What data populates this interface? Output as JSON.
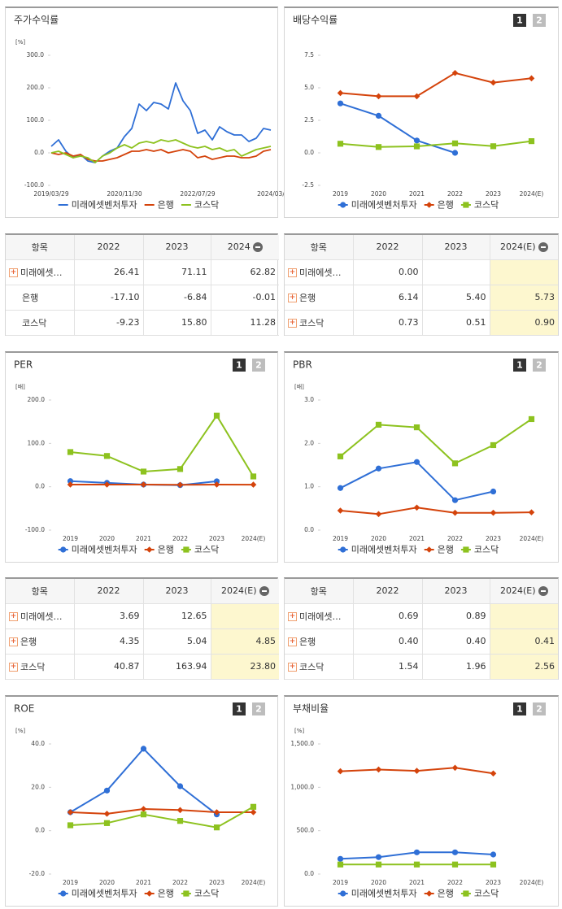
{
  "panel_buttons": [
    "1",
    "2"
  ],
  "chart_data": [
    {
      "type": "line",
      "title": "주가수익률",
      "unit": "[%]",
      "markers": false,
      "categories": [
        "2019/03/29",
        null,
        null,
        null,
        null,
        null,
        null,
        null,
        null,
        null,
        "2020/11/30",
        null,
        null,
        null,
        null,
        null,
        null,
        null,
        null,
        null,
        "2022/07/29",
        null,
        null,
        null,
        null,
        null,
        null,
        null,
        null,
        null,
        "2024/03/"
      ],
      "ylim": [
        -100,
        300
      ],
      "yticks": [
        {
          "value": -100,
          "label": "-100.0"
        },
        {
          "value": 0,
          "label": "0.0"
        },
        {
          "value": 100,
          "label": "100.0"
        },
        {
          "value": 200,
          "label": "200.0"
        },
        {
          "value": 300,
          "label": "300.0"
        }
      ],
      "series": [
        {
          "name": "미래에셋벤처투자",
          "color": "#2f6fd6",
          "values": [
            20,
            40,
            5,
            -15,
            -5,
            -25,
            -30,
            -10,
            5,
            15,
            50,
            75,
            150,
            130,
            155,
            150,
            135,
            215,
            160,
            130,
            60,
            70,
            40,
            80,
            65,
            55,
            55,
            35,
            45,
            75,
            70
          ]
        },
        {
          "name": "은행",
          "color": "#d4430b",
          "values": [
            0,
            -5,
            0,
            -10,
            -5,
            -20,
            -25,
            -25,
            -20,
            -15,
            -5,
            5,
            5,
            10,
            5,
            10,
            0,
            5,
            10,
            5,
            -15,
            -10,
            -20,
            -15,
            -10,
            -10,
            -15,
            -15,
            -10,
            5,
            10
          ]
        },
        {
          "name": "코스닥",
          "color": "#8dc21f",
          "values": [
            0,
            5,
            -5,
            -15,
            -10,
            -15,
            -30,
            -10,
            0,
            15,
            25,
            15,
            30,
            35,
            30,
            40,
            35,
            40,
            30,
            20,
            15,
            20,
            10,
            15,
            5,
            10,
            -10,
            0,
            10,
            15,
            20
          ]
        }
      ]
    },
    {
      "type": "line",
      "title": "배당수익률",
      "markers": true,
      "categories": [
        "2019",
        "2020",
        "2021",
        "2022",
        "2023",
        "2024(E)"
      ],
      "ylim": [
        -2.5,
        7.5
      ],
      "yticks": [
        -2.5,
        {
          "value": 0,
          "label": "0.0"
        },
        2.5,
        {
          "value": 5,
          "label": "5.0"
        },
        7.5
      ],
      "series": [
        {
          "name": "미래에셋벤처투자",
          "color": "#2f6fd6",
          "marker": "circle",
          "values": [
            3.8,
            2.85,
            0.95,
            0.0,
            null,
            null
          ]
        },
        {
          "name": "은행",
          "color": "#d4430b",
          "marker": "diamond",
          "values": [
            4.6,
            4.35,
            4.35,
            6.14,
            5.4,
            5.73
          ]
        },
        {
          "name": "코스닥",
          "color": "#8dc21f",
          "marker": "square",
          "values": [
            0.7,
            0.45,
            0.5,
            0.73,
            0.51,
            0.9
          ]
        }
      ]
    },
    {
      "type": "line",
      "title": "PER",
      "unit": "[배]",
      "markers": true,
      "categories": [
        "2019",
        "2020",
        "2021",
        "2022",
        "2023",
        "2024(E)"
      ],
      "ylim": [
        -100,
        200
      ],
      "yticks": [
        {
          "value": -100,
          "label": "-100.0"
        },
        {
          "value": 0,
          "label": "0.0"
        },
        {
          "value": 100,
          "label": "100.0"
        },
        {
          "value": 200,
          "label": "200.0"
        }
      ],
      "series": [
        {
          "name": "미래에셋벤처투자",
          "color": "#2f6fd6",
          "marker": "circle",
          "values": [
            13,
            9,
            5,
            3.69,
            12.65,
            null
          ]
        },
        {
          "name": "은행",
          "color": "#d4430b",
          "marker": "diamond",
          "values": [
            5,
            5,
            5,
            4.35,
            5.04,
            4.85
          ]
        },
        {
          "name": "코스닥",
          "color": "#8dc21f",
          "marker": "square",
          "values": [
            80,
            71,
            35,
            40.87,
            163.94,
            23.8
          ]
        }
      ]
    },
    {
      "type": "line",
      "title": "PBR",
      "unit": "[배]",
      "markers": true,
      "categories": [
        "2019",
        "2020",
        "2021",
        "2022",
        "2023",
        "2024(E)"
      ],
      "ylim": [
        0,
        3
      ],
      "yticks": [
        {
          "value": 0,
          "label": "0.0"
        },
        {
          "value": 1,
          "label": "1.0"
        },
        {
          "value": 2,
          "label": "2.0"
        },
        {
          "value": 3,
          "label": "3.0"
        }
      ],
      "series": [
        {
          "name": "미래에셋벤처투자",
          "color": "#2f6fd6",
          "marker": "circle",
          "values": [
            0.97,
            1.42,
            1.57,
            0.69,
            0.89,
            null
          ]
        },
        {
          "name": "은행",
          "color": "#d4430b",
          "marker": "diamond",
          "values": [
            0.45,
            0.37,
            0.52,
            0.4,
            0.4,
            0.41
          ]
        },
        {
          "name": "코스닥",
          "color": "#8dc21f",
          "marker": "square",
          "values": [
            1.7,
            2.43,
            2.37,
            1.54,
            1.96,
            2.56
          ]
        }
      ]
    },
    {
      "type": "line",
      "title": "ROE",
      "unit": "[%]",
      "markers": true,
      "categories": [
        "2019",
        "2020",
        "2021",
        "2022",
        "2023",
        "2024(E)"
      ],
      "ylim": [
        -20,
        40
      ],
      "yticks": [
        {
          "value": -20,
          "label": "-20.0"
        },
        {
          "value": 0,
          "label": "0.0"
        },
        {
          "value": 20,
          "label": "20.0"
        },
        {
          "value": 40,
          "label": "40.0"
        }
      ],
      "series": [
        {
          "name": "미래에셋벤처투자",
          "color": "#2f6fd6",
          "marker": "circle",
          "values": [
            8.5,
            18.5,
            37.8,
            20.5,
            7.5,
            null
          ]
        },
        {
          "name": "은행",
          "color": "#d4430b",
          "marker": "diamond",
          "values": [
            8.5,
            7.8,
            10,
            9.5,
            8.5,
            8.5
          ]
        },
        {
          "name": "코스닥",
          "color": "#8dc21f",
          "marker": "square",
          "values": [
            2.5,
            3.5,
            7.5,
            4.5,
            1.5,
            11
          ]
        }
      ]
    },
    {
      "type": "line",
      "title": "부채비율",
      "unit": "[%]",
      "markers": true,
      "categories": [
        "2019",
        "2020",
        "2021",
        "2022",
        "2023",
        "2024(E)"
      ],
      "ylim": [
        0,
        1500
      ],
      "yticks": [
        {
          "value": 0,
          "label": "0.0"
        },
        {
          "value": 500,
          "label": "500.0"
        },
        {
          "value": 1000,
          "label": "1,000.0"
        },
        {
          "value": 1500,
          "label": "1,500.0"
        }
      ],
      "series": [
        {
          "name": "미래에셋벤처투자",
          "color": "#2f6fd6",
          "marker": "circle",
          "values": [
            175,
            195,
            250,
            250,
            225,
            null
          ]
        },
        {
          "name": "은행",
          "color": "#d4430b",
          "marker": "diamond",
          "values": [
            1185,
            1205,
            1190,
            1225,
            1160,
            null
          ]
        },
        {
          "name": "코스닥",
          "color": "#8dc21f",
          "marker": "square",
          "values": [
            110,
            110,
            110,
            110,
            110,
            null
          ]
        }
      ]
    }
  ],
  "tables": [
    {
      "header": [
        "항목",
        "2022",
        "2023",
        "2024"
      ],
      "rows": [
        [
          "미래에셋…",
          "26.41",
          "71.11",
          "62.82"
        ],
        [
          "은행",
          "-17.10",
          "-6.84",
          "-0.01"
        ],
        [
          "코스닥",
          "-9.23",
          "15.80",
          "11.28"
        ]
      ]
    },
    {
      "header": [
        "항목",
        "2022",
        "2023",
        "2024(E)"
      ],
      "rows": [
        [
          "미래에셋…",
          "0.00",
          null,
          null
        ],
        [
          "은행",
          "6.14",
          "5.40",
          "5.73"
        ],
        [
          "코스닥",
          "0.73",
          "0.51",
          "0.90"
        ]
      ]
    },
    {
      "header": [
        "항목",
        "2022",
        "2023",
        "2024(E)"
      ],
      "rows": [
        [
          "미래에셋…",
          "3.69",
          "12.65",
          null
        ],
        [
          "은행",
          "4.35",
          "5.04",
          "4.85"
        ],
        [
          "코스닥",
          "40.87",
          "163.94",
          "23.80"
        ]
      ]
    },
    {
      "header": [
        "항목",
        "2022",
        "2023",
        "2024(E)"
      ],
      "rows": [
        [
          "미래에셋…",
          "0.69",
          "0.89",
          null
        ],
        [
          "은행",
          "0.40",
          "0.40",
          "0.41"
        ],
        [
          "코스닥",
          "1.54",
          "1.96",
          "2.56"
        ]
      ]
    }
  ]
}
